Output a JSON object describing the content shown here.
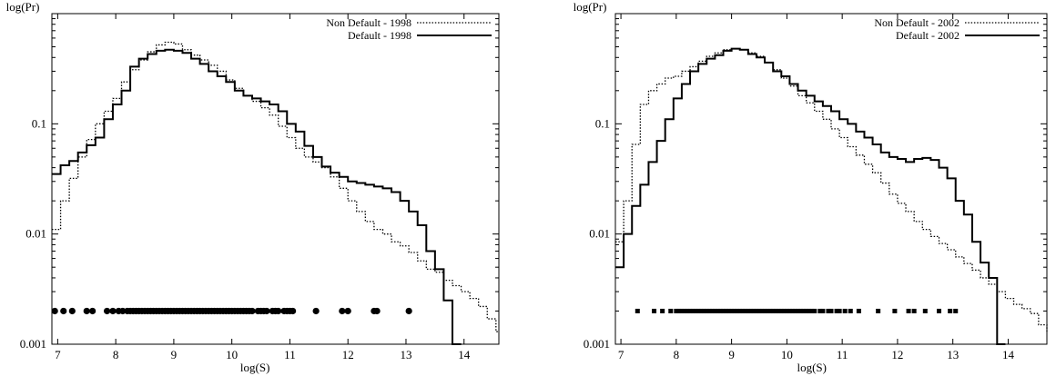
{
  "chart_data": [
    {
      "type": "line",
      "step": true,
      "title": "",
      "xlabel": "log(S)",
      "ylabel": "log(Pr)",
      "yscale": "log",
      "xlim": [
        6.9,
        14.6
      ],
      "ylim": [
        0.001,
        1.0
      ],
      "xticks": [
        7,
        8,
        9,
        10,
        11,
        12,
        13,
        14
      ],
      "yticks": [
        {
          "value": 0.001,
          "label": "0.001"
        },
        {
          "value": 0.01,
          "label": "0.01"
        },
        {
          "value": 0.1,
          "label": "0.1"
        }
      ],
      "legend_position": "top-right",
      "series": [
        {
          "name": "Non Default - 1998",
          "style": "dotted",
          "x": [
            6.9,
            7.05,
            7.2,
            7.35,
            7.5,
            7.65,
            7.8,
            7.95,
            8.1,
            8.25,
            8.4,
            8.55,
            8.7,
            8.85,
            9.0,
            9.15,
            9.3,
            9.45,
            9.6,
            9.75,
            9.9,
            10.05,
            10.2,
            10.35,
            10.5,
            10.65,
            10.8,
            10.95,
            11.1,
            11.25,
            11.4,
            11.55,
            11.7,
            11.85,
            12.0,
            12.15,
            12.3,
            12.45,
            12.6,
            12.75,
            12.9,
            13.05,
            13.2,
            13.35,
            13.5,
            13.65,
            13.8,
            13.95,
            14.1,
            14.25,
            14.4,
            14.55
          ],
          "y": [
            0.011,
            0.02,
            0.032,
            0.05,
            0.072,
            0.1,
            0.13,
            0.17,
            0.24,
            0.31,
            0.38,
            0.45,
            0.52,
            0.55,
            0.53,
            0.47,
            0.42,
            0.38,
            0.34,
            0.3,
            0.25,
            0.21,
            0.18,
            0.16,
            0.14,
            0.12,
            0.095,
            0.075,
            0.06,
            0.05,
            0.045,
            0.04,
            0.033,
            0.026,
            0.02,
            0.016,
            0.013,
            0.011,
            0.01,
            0.0085,
            0.0078,
            0.0068,
            0.0057,
            0.0048,
            0.0045,
            0.0038,
            0.0034,
            0.003,
            0.0026,
            0.0022,
            0.0017,
            0.0013
          ]
        },
        {
          "name": "Default - 1998",
          "style": "solid",
          "x": [
            6.9,
            7.05,
            7.2,
            7.35,
            7.5,
            7.65,
            7.8,
            7.95,
            8.1,
            8.25,
            8.4,
            8.55,
            8.7,
            8.85,
            9.0,
            9.15,
            9.3,
            9.45,
            9.6,
            9.75,
            9.9,
            10.05,
            10.2,
            10.35,
            10.5,
            10.65,
            10.8,
            10.95,
            11.1,
            11.25,
            11.4,
            11.55,
            11.7,
            11.85,
            12.0,
            12.15,
            12.3,
            12.45,
            12.6,
            12.75,
            12.9,
            13.05,
            13.2,
            13.35,
            13.5,
            13.65,
            13.8
          ],
          "y": [
            0.035,
            0.042,
            0.046,
            0.055,
            0.064,
            0.075,
            0.11,
            0.15,
            0.2,
            0.33,
            0.39,
            0.43,
            0.46,
            0.47,
            0.46,
            0.44,
            0.39,
            0.35,
            0.3,
            0.27,
            0.24,
            0.2,
            0.18,
            0.17,
            0.16,
            0.15,
            0.13,
            0.1,
            0.085,
            0.063,
            0.05,
            0.041,
            0.036,
            0.033,
            0.03,
            0.029,
            0.028,
            0.027,
            0.026,
            0.024,
            0.02,
            0.016,
            0.012,
            0.007,
            0.0048,
            0.0025,
            0.001
          ]
        }
      ],
      "scatter": {
        "marker": "circle",
        "y": 0.002,
        "x": [
          6.95,
          7.1,
          7.25,
          7.5,
          7.6,
          7.85,
          7.95,
          8.05,
          8.12,
          8.2,
          8.25,
          8.3,
          8.35,
          8.4,
          8.45,
          8.5,
          8.55,
          8.6,
          8.65,
          8.7,
          8.75,
          8.8,
          8.85,
          8.9,
          8.95,
          9.0,
          9.05,
          9.1,
          9.15,
          9.2,
          9.25,
          9.3,
          9.35,
          9.4,
          9.45,
          9.5,
          9.55,
          9.6,
          9.65,
          9.7,
          9.75,
          9.8,
          9.85,
          9.9,
          9.95,
          10.0,
          10.05,
          10.1,
          10.15,
          10.2,
          10.25,
          10.3,
          10.35,
          10.45,
          10.5,
          10.55,
          10.6,
          10.7,
          10.75,
          10.8,
          10.9,
          10.95,
          11.0,
          11.05,
          11.45,
          11.9,
          12.0,
          12.45,
          12.5,
          13.05
        ]
      }
    },
    {
      "type": "line",
      "step": true,
      "title": "",
      "xlabel": "log(S)",
      "ylabel": "log(Pr)",
      "yscale": "log",
      "xlim": [
        6.9,
        14.7
      ],
      "ylim": [
        0.001,
        1.0
      ],
      "xticks": [
        7,
        8,
        9,
        10,
        11,
        12,
        13,
        14
      ],
      "yticks": [
        {
          "value": 0.001,
          "label": "0.001"
        },
        {
          "value": 0.01,
          "label": "0.01"
        },
        {
          "value": 0.1,
          "label": "0.1"
        }
      ],
      "legend_position": "top-right",
      "series": [
        {
          "name": "Non Default - 2002",
          "style": "dotted",
          "x": [
            6.9,
            7.05,
            7.2,
            7.35,
            7.5,
            7.65,
            7.8,
            7.95,
            8.1,
            8.25,
            8.4,
            8.55,
            8.7,
            8.85,
            9.0,
            9.15,
            9.3,
            9.45,
            9.6,
            9.75,
            9.9,
            10.05,
            10.2,
            10.35,
            10.5,
            10.65,
            10.8,
            10.95,
            11.1,
            11.25,
            11.4,
            11.55,
            11.7,
            11.85,
            12.0,
            12.15,
            12.3,
            12.45,
            12.6,
            12.75,
            12.9,
            13.05,
            13.2,
            13.35,
            13.5,
            13.65,
            13.8,
            13.95,
            14.1,
            14.25,
            14.4,
            14.55,
            14.7
          ],
          "y": [
            0.0085,
            0.02,
            0.065,
            0.15,
            0.2,
            0.23,
            0.26,
            0.27,
            0.3,
            0.33,
            0.37,
            0.41,
            0.44,
            0.47,
            0.48,
            0.47,
            0.44,
            0.41,
            0.36,
            0.31,
            0.26,
            0.22,
            0.18,
            0.155,
            0.13,
            0.11,
            0.09,
            0.075,
            0.062,
            0.052,
            0.043,
            0.036,
            0.029,
            0.023,
            0.019,
            0.016,
            0.013,
            0.011,
            0.0095,
            0.0082,
            0.0072,
            0.0062,
            0.0054,
            0.0047,
            0.004,
            0.0035,
            0.003,
            0.0026,
            0.0023,
            0.0021,
            0.0019,
            0.0015,
            0.0013
          ]
        },
        {
          "name": "Default - 2002",
          "style": "solid",
          "x": [
            6.9,
            7.05,
            7.2,
            7.35,
            7.5,
            7.65,
            7.8,
            7.95,
            8.1,
            8.25,
            8.4,
            8.55,
            8.7,
            8.85,
            9.0,
            9.15,
            9.3,
            9.45,
            9.6,
            9.75,
            9.9,
            10.05,
            10.2,
            10.35,
            10.5,
            10.65,
            10.8,
            10.95,
            11.1,
            11.25,
            11.4,
            11.55,
            11.7,
            11.85,
            12.0,
            12.15,
            12.3,
            12.45,
            12.6,
            12.75,
            12.9,
            13.05,
            13.2,
            13.35,
            13.5,
            13.65,
            13.8
          ],
          "y": [
            0.005,
            0.01,
            0.018,
            0.028,
            0.045,
            0.07,
            0.11,
            0.17,
            0.23,
            0.3,
            0.35,
            0.39,
            0.42,
            0.46,
            0.48,
            0.47,
            0.43,
            0.4,
            0.36,
            0.3,
            0.27,
            0.23,
            0.2,
            0.18,
            0.16,
            0.145,
            0.13,
            0.11,
            0.1,
            0.085,
            0.075,
            0.065,
            0.055,
            0.05,
            0.048,
            0.045,
            0.048,
            0.049,
            0.047,
            0.04,
            0.032,
            0.02,
            0.015,
            0.0085,
            0.0055,
            0.004,
            0.001
          ]
        }
      ],
      "scatter": {
        "marker": "square",
        "y": 0.002,
        "x": [
          7.3,
          7.6,
          7.75,
          7.9,
          8.0,
          8.05,
          8.1,
          8.15,
          8.2,
          8.25,
          8.3,
          8.35,
          8.4,
          8.45,
          8.5,
          8.55,
          8.6,
          8.65,
          8.7,
          8.75,
          8.8,
          8.85,
          8.9,
          8.95,
          9.0,
          9.05,
          9.1,
          9.15,
          9.2,
          9.25,
          9.3,
          9.35,
          9.4,
          9.45,
          9.5,
          9.55,
          9.6,
          9.65,
          9.7,
          9.75,
          9.8,
          9.85,
          9.9,
          9.95,
          10.0,
          10.05,
          10.1,
          10.15,
          10.2,
          10.25,
          10.3,
          10.35,
          10.4,
          10.45,
          10.5,
          10.6,
          10.65,
          10.75,
          10.8,
          10.9,
          10.95,
          11.05,
          11.15,
          11.3,
          11.65,
          11.95,
          12.2,
          12.3,
          12.5,
          12.75,
          12.95,
          13.05
        ]
      }
    }
  ]
}
